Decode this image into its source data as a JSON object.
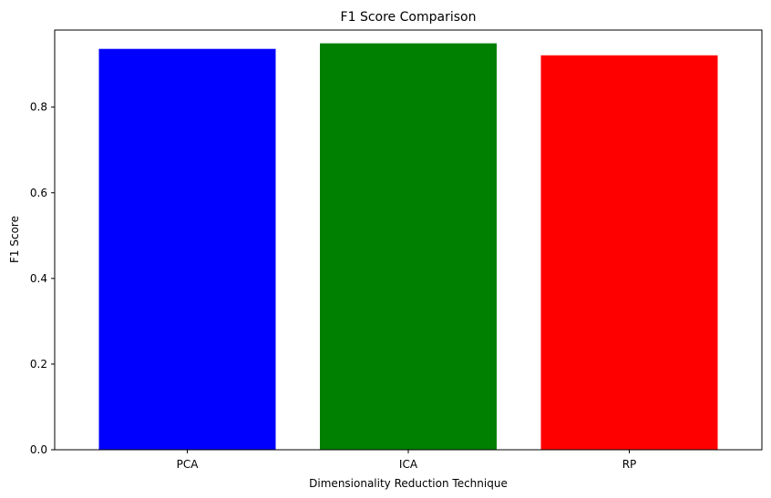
{
  "chart_data": {
    "type": "bar",
    "title": "F1 Score Comparison",
    "xlabel": "Dimensionality Reduction Technique",
    "ylabel": "F1 Score",
    "categories": [
      "PCA",
      "ICA",
      "RP"
    ],
    "values": [
      0.936,
      0.949,
      0.921
    ],
    "colors": [
      "#0000ff",
      "#008000",
      "#ff0000"
    ],
    "ylim": [
      0,
      0.98
    ],
    "yticks": [
      0.0,
      0.2,
      0.4,
      0.6,
      0.8
    ],
    "ytick_labels": [
      "0.0",
      "0.2",
      "0.4",
      "0.6",
      "0.8"
    ],
    "grid": false,
    "legend": "none"
  }
}
